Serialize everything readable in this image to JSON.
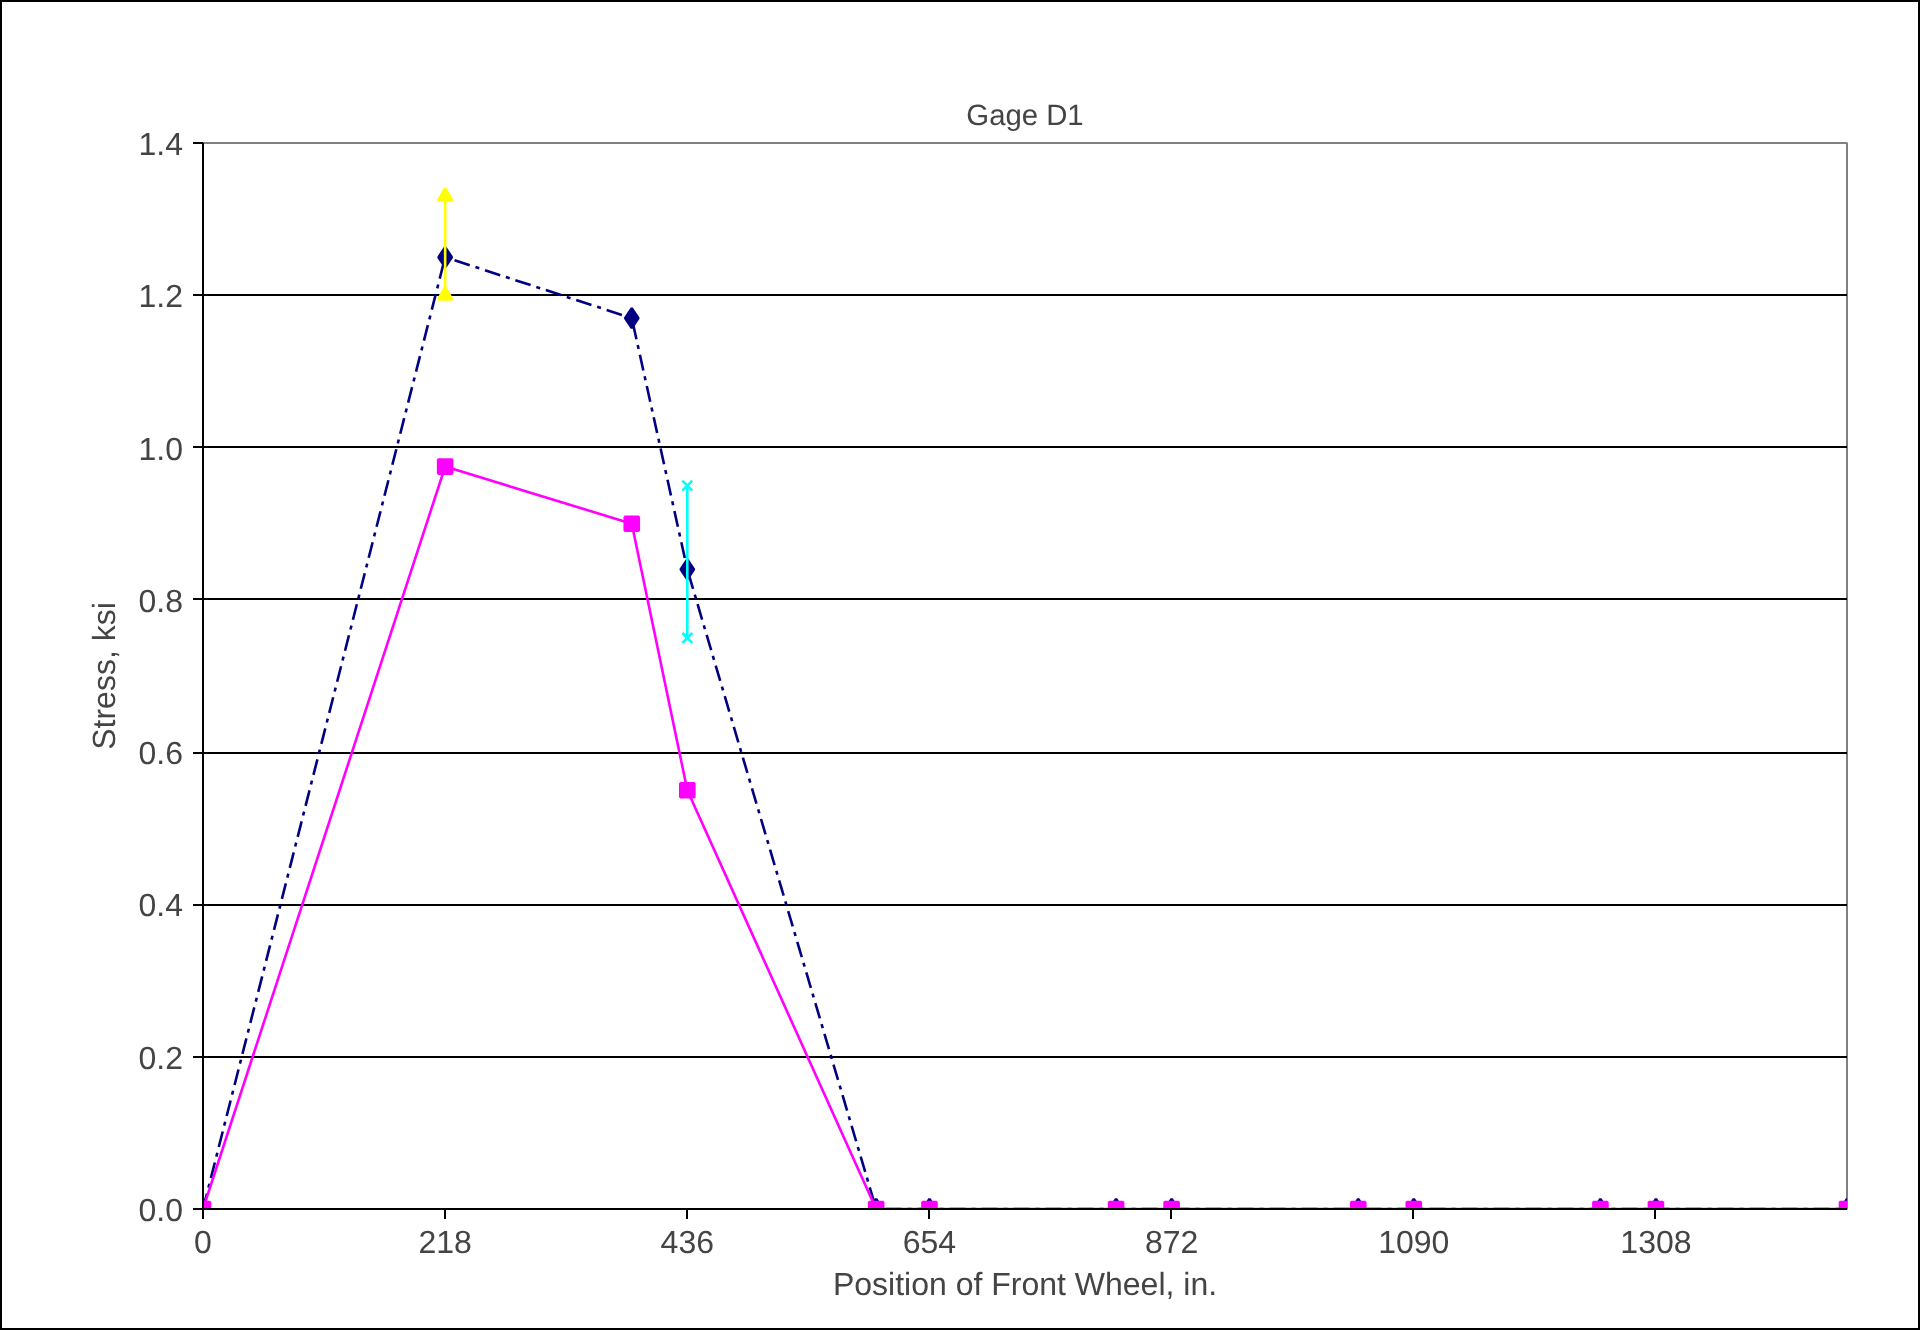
{
  "chart_data": {
    "type": "line",
    "title": "Gage D1",
    "xlabel": "Position of Front Wheel, in.",
    "ylabel": "Stress, ksi",
    "xlim": [
      0,
      1480
    ],
    "xticks": [
      0,
      218,
      436,
      654,
      872,
      1090,
      1308
    ],
    "ylim": [
      0,
      1.4
    ],
    "yticks": [
      {
        "value": 0,
        "label": "0.0"
      },
      {
        "value": 0.2,
        "label": "0.2"
      },
      {
        "value": 0.4,
        "label": "0.4"
      },
      {
        "value": 0.6,
        "label": "0.6"
      },
      {
        "value": 0.8,
        "label": "0.8"
      },
      {
        "value": 1.0,
        "label": "1.0"
      },
      {
        "value": 1.2,
        "label": "1.2"
      },
      {
        "value": 1.4,
        "label": "1.4"
      }
    ],
    "grid": "y",
    "series": [
      {
        "color": "#000080",
        "marker": "diamond",
        "line_style": "dashed",
        "x": [
          0,
          218,
          386,
          436,
          606,
          654,
          822,
          872,
          1040,
          1090,
          1258,
          1308,
          1480
        ],
        "values": [
          0,
          1.25,
          1.17,
          0.84,
          0,
          0,
          0,
          0,
          0,
          0,
          0,
          0,
          0
        ]
      },
      {
        "color": "#ff00ff",
        "marker": "square",
        "line_style": "solid",
        "x": [
          0,
          218,
          386,
          436,
          606,
          654,
          822,
          872,
          1040,
          1090,
          1258,
          1308,
          1480
        ],
        "values": [
          0,
          0.975,
          0.9,
          0.55,
          0,
          0,
          0,
          0,
          0,
          0,
          0,
          0,
          0
        ]
      },
      {
        "color": "#ffff00",
        "marker": "triangle",
        "line_style": "solid",
        "x": [
          218,
          218
        ],
        "values": [
          1.2,
          1.33
        ]
      },
      {
        "color": "#00ffff",
        "marker": "cross",
        "line_style": "solid",
        "x": [
          436,
          436
        ],
        "values": [
          0.75,
          0.95
        ]
      }
    ]
  }
}
